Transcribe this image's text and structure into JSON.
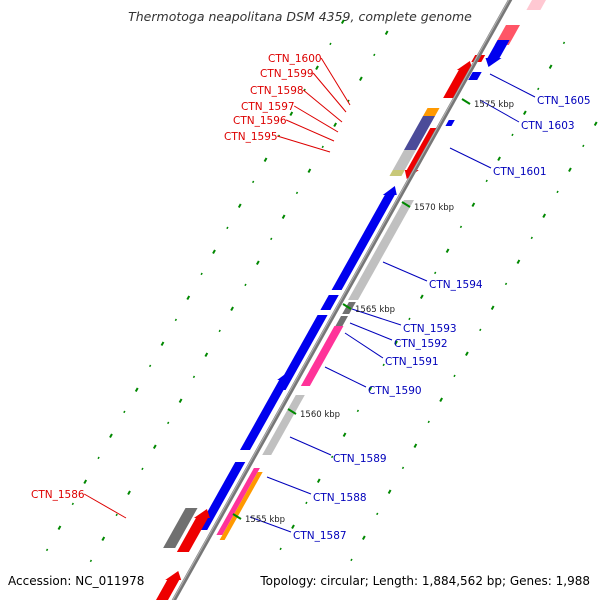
{
  "title": "Thermotoga neapolitana DSM 4359, complete genome",
  "footer": {
    "accession": "Accession: NC_011978",
    "topology": "Topology: circular; Length: 1,884,562 bp; Genes: 1,988"
  },
  "colors": {
    "backbone": "#8a8a8a",
    "blue": "#0000ee",
    "red": "#ee0000",
    "gray": "#c0c0c0",
    "darkgray": "#707070",
    "pink": "#ff3399",
    "orange": "#ff9900",
    "purple": "#4b4b99",
    "olive": "#c8c878",
    "tick_major": "#008800",
    "label_red": "#dd0000",
    "label_blue": "#0000bb"
  },
  "kbp_ticks": [
    {
      "label": "1575 kbp"
    },
    {
      "label": "1570 kbp"
    },
    {
      "label": "1565 kbp"
    },
    {
      "label": "1560 kbp"
    },
    {
      "label": "1555 kbp"
    }
  ],
  "gene_labels": {
    "red": [
      "CTN_1600",
      "CTN_1599",
      "CTN_1598",
      "CTN_1597",
      "CTN_1596",
      "CTN_1595",
      "CTN_1586"
    ],
    "blue": [
      "CTN_1605",
      "CTN_1603",
      "CTN_1601",
      "CTN_1594",
      "CTN_1593",
      "CTN_1592",
      "CTN_1591",
      "CTN_1590",
      "CTN_1589",
      "CTN_1588",
      "CTN_1587"
    ]
  }
}
